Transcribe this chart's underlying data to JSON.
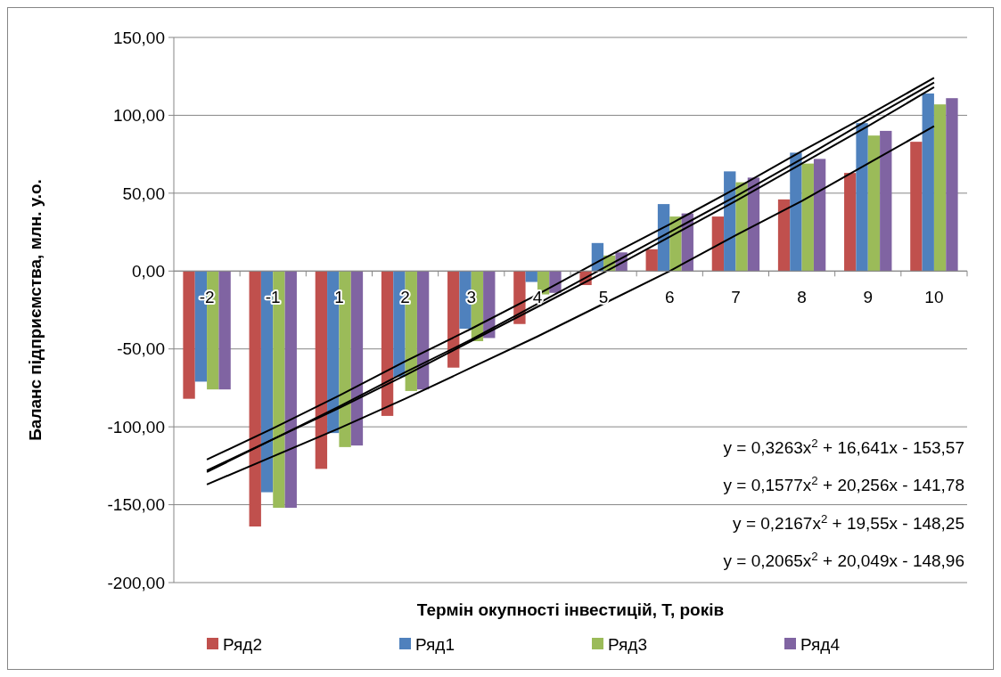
{
  "chart_data": {
    "type": "bar",
    "xlabel": "Термін окупності інвестицій, Т, років",
    "ylabel": "Баланс підприємства, млн. у.о.",
    "categories": [
      "-2",
      "-1",
      "1",
      "2",
      "3",
      "4",
      "5",
      "6",
      "7",
      "8",
      "9",
      "10"
    ],
    "series": [
      {
        "name": "Ряд2",
        "color": "#c0504d",
        "values": [
          -82,
          -164,
          -127,
          -93,
          -62,
          -34,
          -9,
          14,
          35,
          46,
          63,
          83
        ]
      },
      {
        "name": "Ряд1",
        "color": "#4f81bd",
        "values": [
          -71,
          -142,
          -104,
          -68,
          -37,
          -7,
          18,
          43,
          64,
          76,
          95,
          114
        ]
      },
      {
        "name": "Ряд3",
        "color": "#9bbb59",
        "values": [
          -76,
          -152,
          -113,
          -77,
          -45,
          -15,
          10,
          35,
          57,
          69,
          87,
          107
        ]
      },
      {
        "name": "Ряд4",
        "color": "#8064a2",
        "values": [
          -76,
          -152,
          -112,
          -76,
          -43,
          -14,
          12,
          37,
          60,
          72,
          90,
          111
        ]
      },
      {
        "type": "line",
        "color": "#000000",
        "values": [
          -137,
          -119,
          -101,
          -82,
          -62,
          -42,
          -21,
          0,
          23,
          45,
          69,
          93
        ]
      },
      {
        "type": "line",
        "color": "#000000",
        "values": [
          -121,
          -101,
          -80,
          -58,
          -37,
          -15,
          8,
          30,
          53,
          77,
          100,
          124
        ]
      },
      {
        "type": "line",
        "color": "#000000",
        "values": [
          -128,
          -108,
          -88,
          -67,
          -45,
          -23,
          -1,
          22,
          45,
          69,
          93,
          118
        ]
      },
      {
        "type": "line",
        "color": "#000000",
        "values": [
          -129,
          -108,
          -87,
          -65,
          -44,
          -21,
          2,
          25,
          48,
          72,
          97,
          121
        ]
      }
    ],
    "ylim": [
      -200,
      150
    ],
    "yticks": [
      {
        "value": -200,
        "label": "-200,00"
      },
      {
        "value": -150,
        "label": "-150,00"
      },
      {
        "value": -100,
        "label": "-100,00"
      },
      {
        "value": -50,
        "label": "-50,00"
      },
      {
        "value": 0,
        "label": "0,00"
      },
      {
        "value": 50,
        "label": "50,00"
      },
      {
        "value": 100,
        "label": "100,00"
      },
      {
        "value": 150,
        "label": "150,00"
      }
    ],
    "grid": "y",
    "legend": "bottom",
    "marker": "none",
    "line_style": "solid",
    "annotations": [
      "y = 0,3263x$^{2}$ + 16,641x - 153,57",
      "y = 0,1577x$^{2}$ + 20,256x - 141,78",
      "y = 0,2167x$^{2}$ + 19,55x - 148,25",
      "y = 0,2065x$^{2}$ + 20,049x - 148,96"
    ]
  }
}
